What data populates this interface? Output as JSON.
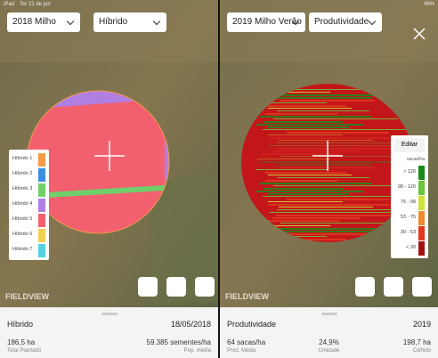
{
  "status_bar": {
    "device": "iPad",
    "date": "Ter 21 de jun",
    "battery": "49%"
  },
  "left_panel": {
    "season": "2018 Milho",
    "layer": "Híbrido",
    "brand": "FIELDVIEW",
    "legend": [
      {
        "label": "Híbrido 1",
        "color": "#f29b4b"
      },
      {
        "label": "Híbrido 2",
        "color": "#3b8fe0"
      },
      {
        "label": "Híbrido 3",
        "color": "#6fd06a"
      },
      {
        "label": "Híbrido 4",
        "color": "#b07fe2"
      },
      {
        "label": "Híbrido 5",
        "color": "#f2606f"
      },
      {
        "label": "Híbrido 6",
        "color": "#f0d050"
      },
      {
        "label": "Híbrido 7",
        "color": "#54d2e2"
      }
    ],
    "summary": {
      "title": "Híbrido",
      "date": "18/05/2018",
      "stats": [
        {
          "value": "186,5 ha",
          "label": "Total Plantado"
        },
        {
          "value": "59.385 sementes/ha",
          "label": "Pop. média"
        }
      ]
    }
  },
  "right_panel": {
    "season": "2019 Milho Verão",
    "layer": "Produtividade",
    "brand": "FIELDVIEW",
    "legend": {
      "button": "Editar",
      "unit": "sacas/ha",
      "items": [
        {
          "label": "> 120",
          "color": "#1a8a1f"
        },
        {
          "label": "98 - 120",
          "color": "#6cc63c"
        },
        {
          "label": "75 - 98",
          "color": "#cfe23a"
        },
        {
          "label": "53 - 75",
          "color": "#f08a30"
        },
        {
          "label": "30 - 53",
          "color": "#e2381f"
        },
        {
          "label": "< 30",
          "color": "#a31212"
        }
      ]
    },
    "summary": {
      "title": "Produtividade",
      "date": "2019",
      "stats": [
        {
          "value": "64 sacas/ha",
          "label": "Prod. Média"
        },
        {
          "value": "24,9%",
          "label": "Umidade"
        },
        {
          "value": "198,7 ha",
          "label": "Colhido"
        }
      ]
    }
  }
}
